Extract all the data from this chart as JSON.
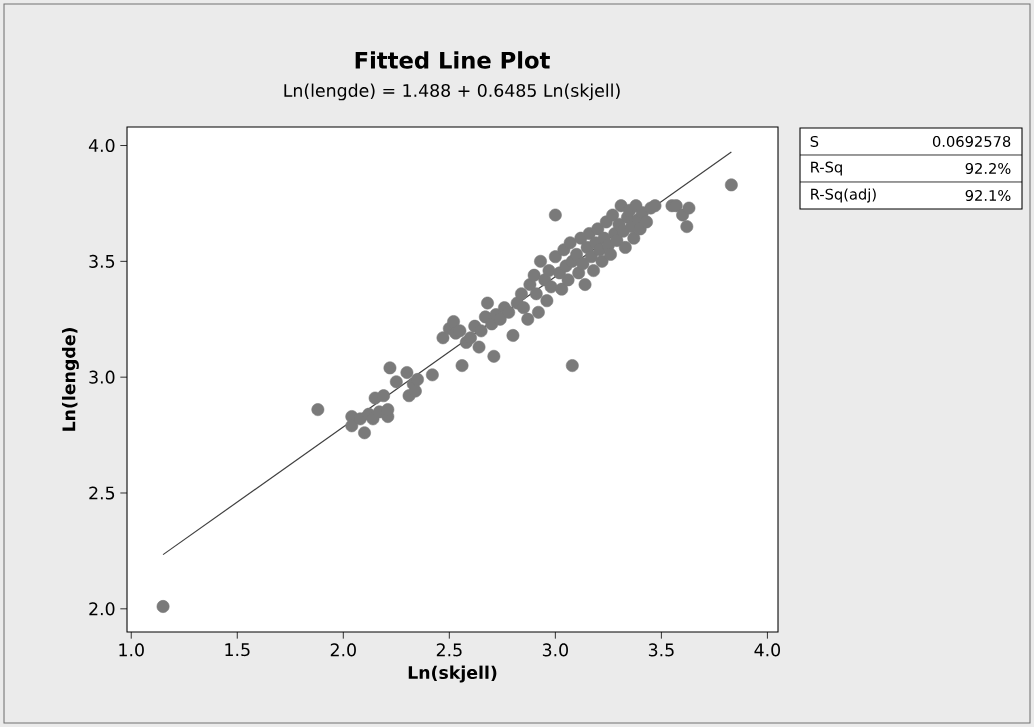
{
  "chart_data": {
    "type": "scatter",
    "title": "Fitted Line Plot",
    "subtitle": "Ln(lengde) =  1.488 + 0.6485 Ln(skjell)",
    "xlabel": "Ln(skjell)",
    "ylabel": "Ln(lengde)",
    "xlim": [
      0.98,
      4.05
    ],
    "ylim": [
      1.9,
      4.08
    ],
    "xticks": [
      {
        "value": 1.0,
        "label": "1.0"
      },
      {
        "value": 1.5,
        "label": "1.5"
      },
      {
        "value": 2.0,
        "label": "2.0"
      },
      {
        "value": 2.5,
        "label": "2.5"
      },
      {
        "value": 3.0,
        "label": "3.0"
      },
      {
        "value": 3.5,
        "label": "3.5"
      },
      {
        "value": 4.0,
        "label": "4.0"
      }
    ],
    "yticks": [
      {
        "value": 2.0,
        "label": "2.0"
      },
      {
        "value": 2.5,
        "label": "2.5"
      },
      {
        "value": 3.0,
        "label": "3.0"
      },
      {
        "value": 3.5,
        "label": "3.5"
      },
      {
        "value": 4.0,
        "label": "4.0"
      }
    ],
    "annotations": [
      "S",
      "0.0692578",
      "R-Sq",
      "92.2%",
      "R-Sq(adj)",
      "92.1%"
    ],
    "series": [
      {
        "color": "#7a7a7a",
        "marker": "circle",
        "x": [
          1.15,
          1.88,
          2.04,
          2.04,
          2.08,
          2.1,
          2.12,
          2.14,
          2.15,
          2.17,
          2.19,
          2.21,
          2.21,
          2.22,
          2.25,
          2.3,
          2.31,
          2.33,
          2.34,
          2.35,
          2.42,
          2.47,
          2.5,
          2.52,
          2.53,
          2.55,
          2.56,
          2.58,
          2.6,
          2.62,
          2.64,
          2.65,
          2.67,
          2.68,
          2.7,
          2.71,
          2.72,
          2.74,
          2.76,
          2.78,
          2.8,
          2.82,
          2.84,
          2.85,
          2.87,
          2.88,
          2.9,
          2.91,
          2.92,
          2.93,
          2.95,
          2.96,
          2.97,
          2.98,
          3.0,
          3.0,
          3.02,
          3.03,
          3.04,
          3.05,
          3.06,
          3.07,
          3.08,
          3.08,
          3.1,
          3.11,
          3.12,
          3.13,
          3.14,
          3.15,
          3.16,
          3.17,
          3.18,
          3.19,
          3.2,
          3.21,
          3.22,
          3.23,
          3.24,
          3.25,
          3.26,
          3.27,
          3.28,
          3.29,
          3.3,
          3.31,
          3.32,
          3.33,
          3.34,
          3.35,
          3.36,
          3.37,
          3.38,
          3.39,
          3.4,
          3.41,
          3.43,
          3.45,
          3.47,
          3.55,
          3.57,
          3.6,
          3.62,
          3.63,
          3.83
        ],
        "values": [
          2.01,
          2.86,
          2.83,
          2.79,
          2.82,
          2.76,
          2.84,
          2.82,
          2.91,
          2.85,
          2.92,
          2.83,
          2.86,
          3.04,
          2.98,
          3.02,
          2.92,
          2.97,
          2.94,
          2.99,
          3.01,
          3.17,
          3.21,
          3.24,
          3.19,
          3.2,
          3.05,
          3.15,
          3.17,
          3.22,
          3.13,
          3.2,
          3.26,
          3.32,
          3.23,
          3.09,
          3.27,
          3.25,
          3.3,
          3.28,
          3.18,
          3.32,
          3.36,
          3.3,
          3.25,
          3.4,
          3.44,
          3.36,
          3.28,
          3.5,
          3.42,
          3.33,
          3.46,
          3.39,
          3.7,
          3.52,
          3.45,
          3.38,
          3.55,
          3.48,
          3.42,
          3.58,
          3.05,
          3.5,
          3.53,
          3.45,
          3.6,
          3.49,
          3.4,
          3.56,
          3.62,
          3.52,
          3.46,
          3.58,
          3.64,
          3.55,
          3.5,
          3.6,
          3.67,
          3.57,
          3.53,
          3.7,
          3.62,
          3.59,
          3.66,
          3.74,
          3.63,
          3.56,
          3.69,
          3.72,
          3.65,
          3.6,
          3.74,
          3.68,
          3.64,
          3.71,
          3.67,
          3.73,
          3.74,
          3.74,
          3.74,
          3.7,
          3.65,
          3.73,
          3.83
        ]
      },
      {
        "type": "line",
        "marker": "none",
        "color": "#404040",
        "x": [
          1.15,
          3.83
        ],
        "values": [
          2.234,
          3.972
        ]
      }
    ]
  }
}
